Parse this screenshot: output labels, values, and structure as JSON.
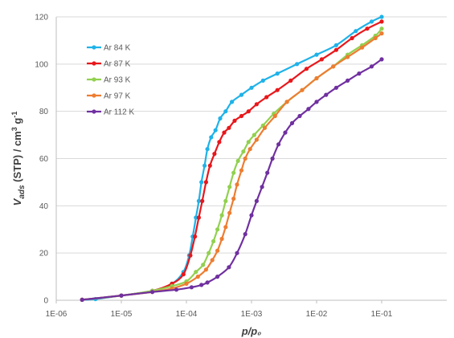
{
  "chart_data": {
    "type": "line",
    "x_scale": "log",
    "xlim": [
      1e-06,
      1
    ],
    "ylim": [
      0,
      120
    ],
    "x_ticks": [
      1e-06,
      1e-05,
      0.0001,
      0.001,
      0.01,
      0.1
    ],
    "x_tick_labels": [
      "1E-06",
      "1E-05",
      "1E-04",
      "1E-03",
      "1E-02",
      "1E-01"
    ],
    "y_ticks": [
      0,
      20,
      40,
      60,
      80,
      100,
      120
    ],
    "y_tick_labels": [
      "0",
      "20",
      "40",
      "60",
      "80",
      "100",
      "120"
    ],
    "xlabel": "p/p₀",
    "ylabel": {
      "v": "V",
      "sub": "ads",
      "rest": " (STP) / cm",
      "sup1": "3",
      "rest2": " g",
      "sup2": "-1"
    },
    "grid": "horizontal",
    "legend_position": "top-left",
    "series": [
      {
        "name": "Ar 84 K",
        "color": "#1fb2e8",
        "x": [
          2.5e-06,
          4e-06,
          1e-05,
          3e-05,
          6e-05,
          9e-05,
          0.00011,
          0.000125,
          0.00014,
          0.000155,
          0.00017,
          0.00019,
          0.00021,
          0.00024,
          0.00028,
          0.00033,
          0.0004,
          0.0005,
          0.0007,
          0.001,
          0.0015,
          0.0025,
          0.005,
          0.01,
          0.02,
          0.04,
          0.07,
          0.1
        ],
        "y": [
          0.2,
          0.5,
          2,
          4,
          7,
          12,
          19,
          27,
          35,
          42,
          50,
          57,
          64,
          69,
          72,
          77,
          80,
          84,
          87,
          90,
          93,
          96,
          100,
          104,
          108,
          114,
          118,
          120
        ]
      },
      {
        "name": "Ar 87 K",
        "color": "#e8171b",
        "x": [
          2.5e-06,
          1e-05,
          3e-05,
          6e-05,
          9e-05,
          0.000115,
          0.000135,
          0.000155,
          0.000175,
          0.0002,
          0.00023,
          0.00027,
          0.00032,
          0.00038,
          0.00045,
          0.00055,
          0.0007,
          0.0009,
          0.0012,
          0.0017,
          0.0025,
          0.004,
          0.007,
          0.012,
          0.02,
          0.035,
          0.06,
          0.1
        ],
        "y": [
          0.2,
          2,
          4,
          7,
          11,
          19,
          27,
          35,
          42,
          50,
          57,
          62,
          67,
          71,
          73,
          76,
          78,
          80,
          83,
          86,
          89,
          93,
          98,
          102,
          106,
          111,
          115,
          118
        ]
      },
      {
        "name": "Ar 93 K",
        "color": "#92d050",
        "x": [
          2.5e-06,
          1e-05,
          3e-05,
          6e-05,
          0.0001,
          0.00014,
          0.00018,
          0.00022,
          0.00026,
          0.0003,
          0.00035,
          0.0004,
          0.00046,
          0.00053,
          0.00062,
          0.00075,
          0.0009,
          0.0011,
          0.0015,
          0.0022,
          0.0035,
          0.006,
          0.01,
          0.018,
          0.03,
          0.05,
          0.08,
          0.1
        ],
        "y": [
          0.2,
          2,
          4,
          6,
          8,
          12,
          15,
          20,
          25,
          30,
          36,
          42,
          48,
          54,
          59,
          63,
          67,
          70,
          74,
          79,
          84,
          89,
          94,
          99,
          104,
          108,
          112,
          115
        ]
      },
      {
        "name": "Ar 97 K",
        "color": "#ed7d31",
        "x": [
          2.5e-06,
          1e-05,
          3e-05,
          6e-05,
          0.0001,
          0.00015,
          0.0002,
          0.00025,
          0.0003,
          0.00035,
          0.0004,
          0.00046,
          0.00053,
          0.0006,
          0.0007,
          0.0008,
          0.00095,
          0.0012,
          0.0016,
          0.0023,
          0.0035,
          0.006,
          0.01,
          0.018,
          0.03,
          0.05,
          0.08,
          0.1
        ],
        "y": [
          0.2,
          2,
          3.5,
          5,
          7,
          10,
          13,
          17,
          21,
          26,
          31,
          37,
          43,
          49,
          55,
          60,
          64,
          68,
          73,
          78,
          84,
          89,
          94,
          99,
          103,
          107,
          111,
          113
        ]
      },
      {
        "name": "Ar 112 K",
        "color": "#7030a0",
        "x": [
          2.5e-06,
          1e-05,
          3e-05,
          7e-05,
          0.00012,
          0.00017,
          0.00021,
          0.0003,
          0.00045,
          0.0006,
          0.0008,
          0.001,
          0.0012,
          0.00145,
          0.00175,
          0.0021,
          0.0026,
          0.0033,
          0.0042,
          0.0055,
          0.0075,
          0.01,
          0.014,
          0.02,
          0.03,
          0.045,
          0.07,
          0.1
        ],
        "y": [
          0.2,
          2,
          3.5,
          4.5,
          5.5,
          6.5,
          7.5,
          10,
          14,
          20,
          28,
          36,
          42,
          48,
          54,
          60,
          66,
          71,
          75,
          78,
          81,
          84,
          87,
          90,
          93,
          96,
          99,
          102
        ]
      }
    ]
  }
}
